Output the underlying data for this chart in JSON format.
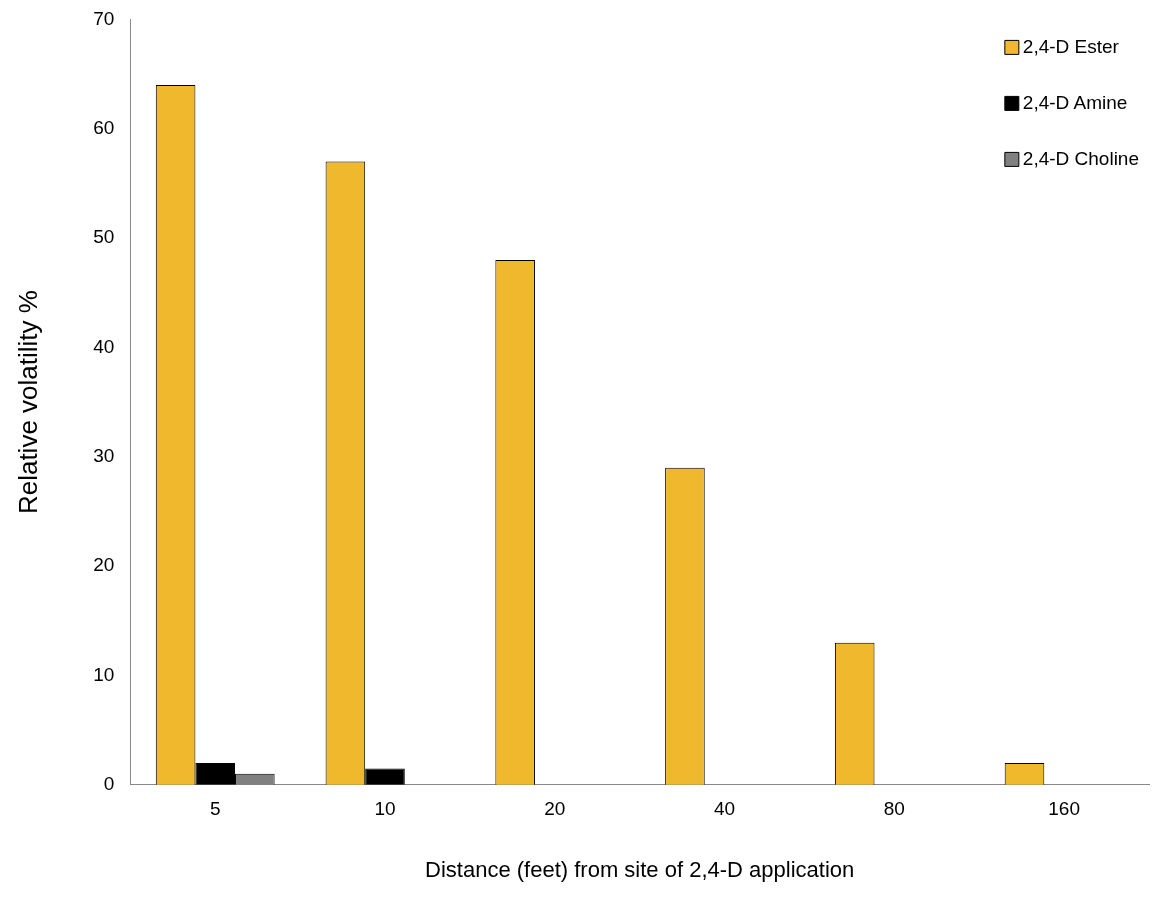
{
  "chart_data": {
    "type": "bar",
    "xlabel": "Distance (feet) from site of 2,4-D application",
    "ylabel": "Relative volatility %",
    "categories": [
      "5",
      "10",
      "20",
      "40",
      "80",
      "160"
    ],
    "series": [
      {
        "name": "2,4-D Ester",
        "color": "#f0b92d",
        "values": [
          64,
          57,
          48,
          29,
          13,
          2
        ]
      },
      {
        "name": "2,4-D Amine",
        "color": "#000000",
        "values": [
          2,
          1.5,
          null,
          null,
          null,
          null
        ]
      },
      {
        "name": "2,4-D Choline",
        "color": "#808080",
        "values": [
          1,
          null,
          null,
          null,
          null,
          null
        ]
      }
    ],
    "ylim": [
      0,
      70
    ],
    "yticks": [
      0,
      10,
      20,
      30,
      40,
      50,
      60,
      70
    ],
    "grid": false,
    "legend": "top right"
  }
}
